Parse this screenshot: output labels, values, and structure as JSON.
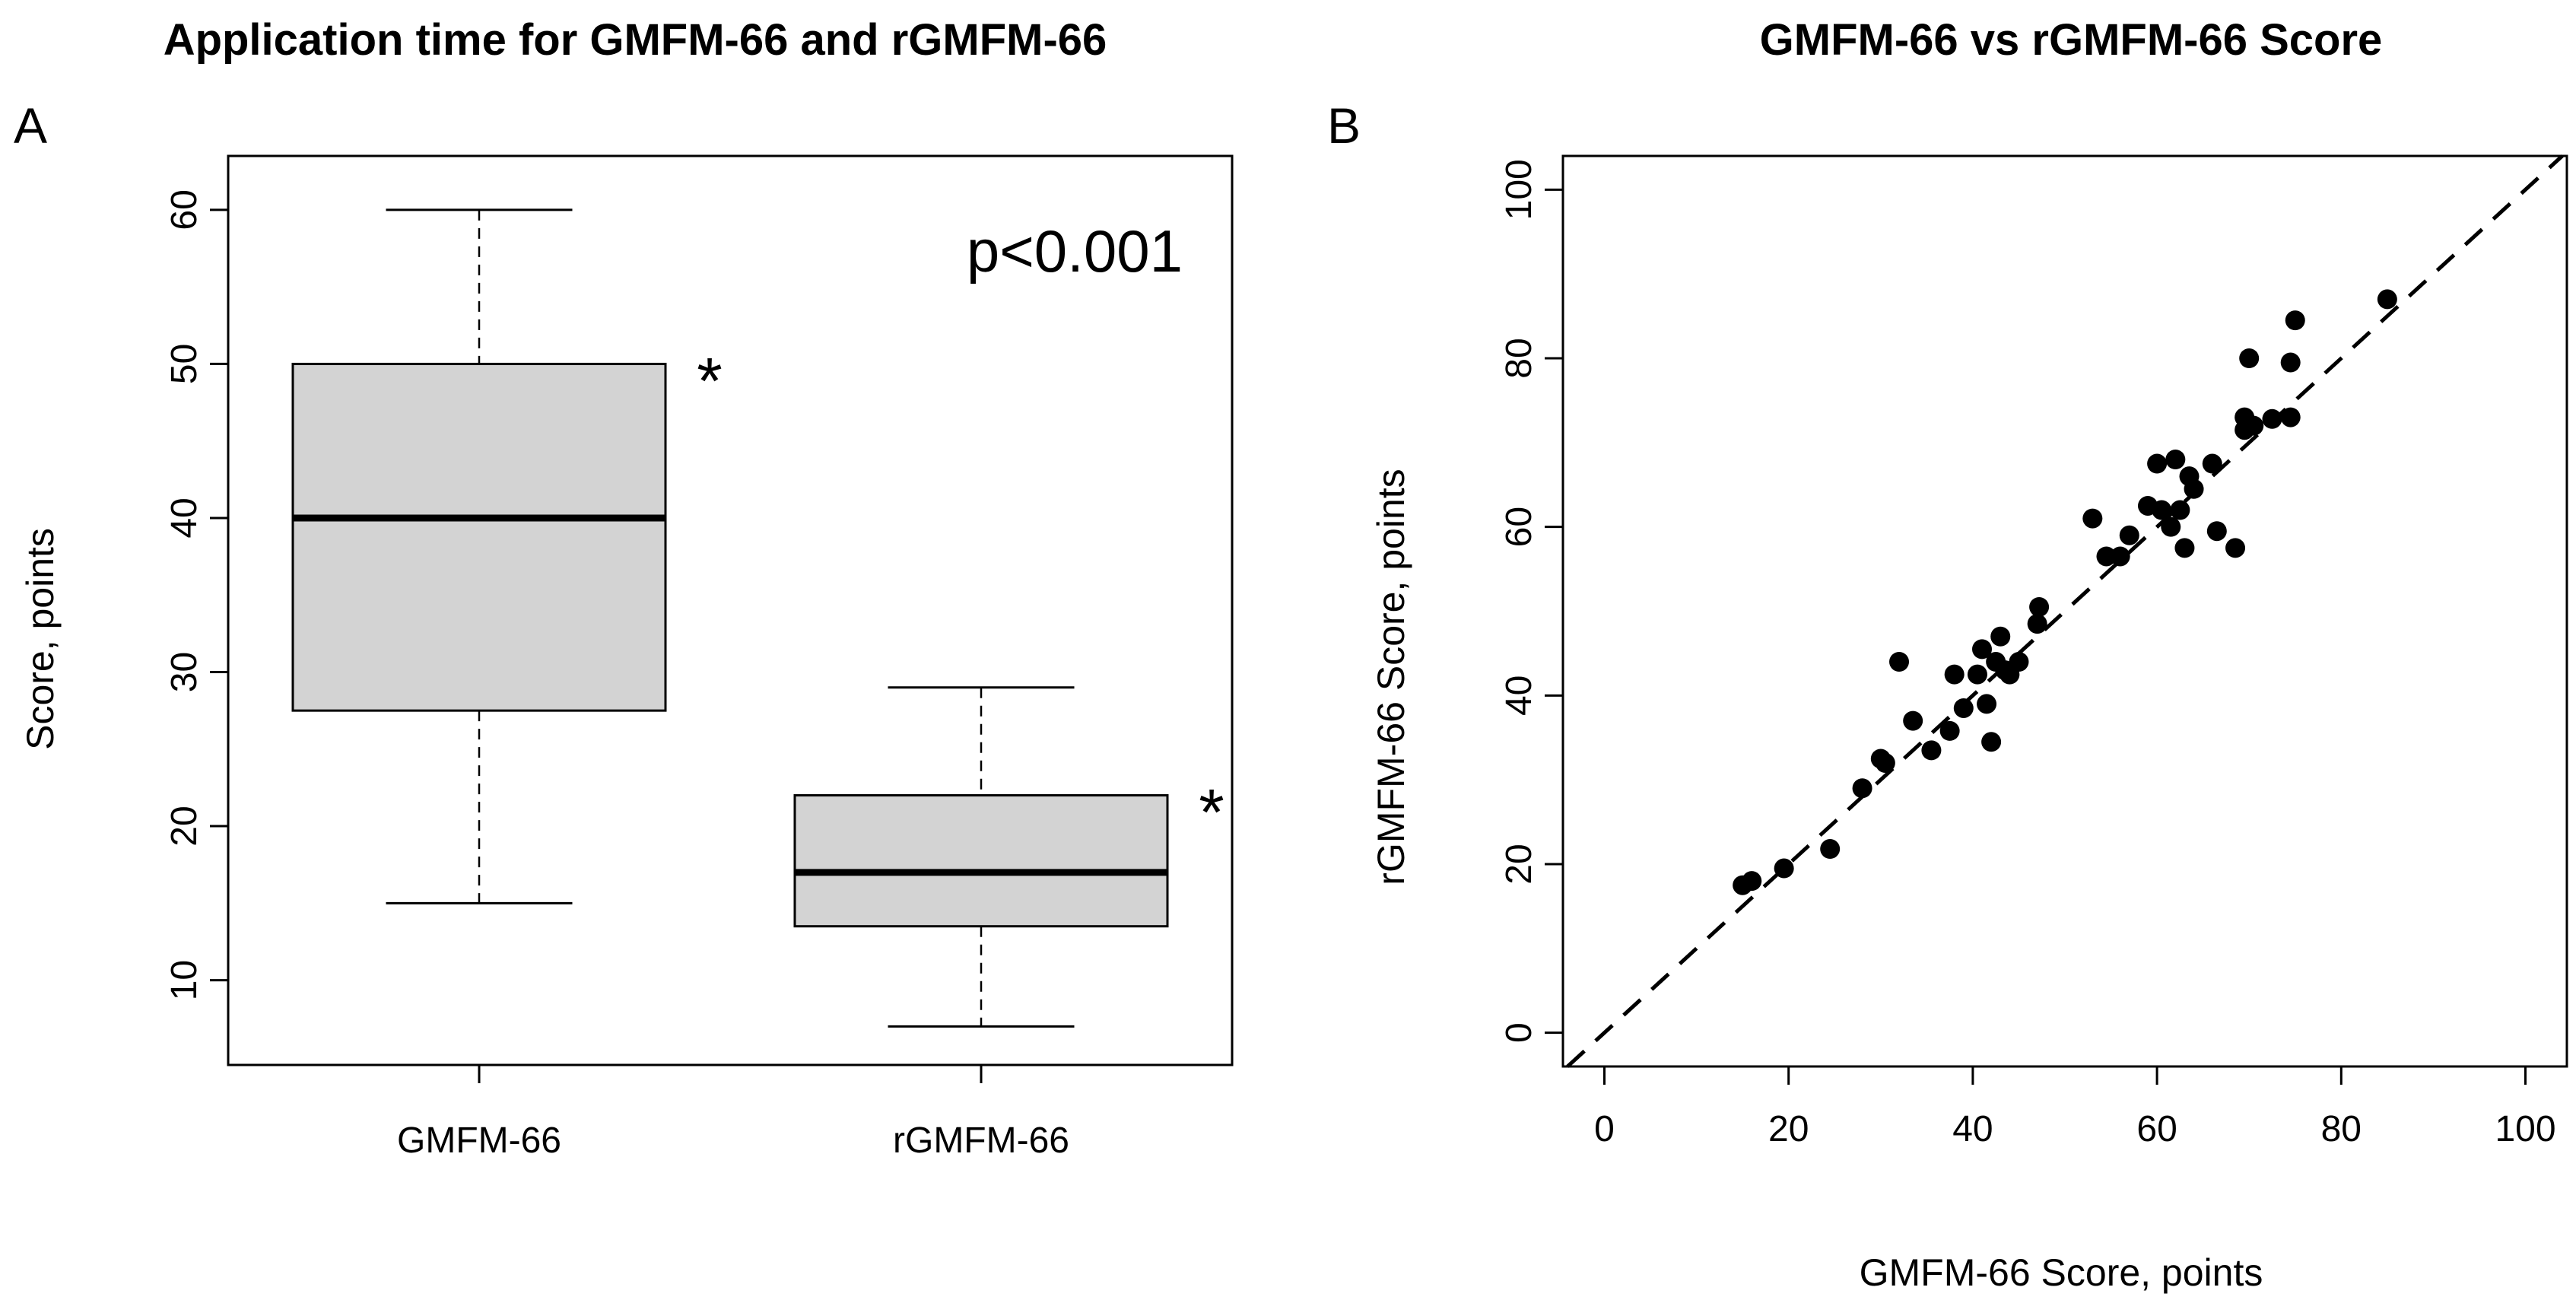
{
  "chart_data": [
    {
      "type": "box",
      "panel_label": "A",
      "title": "Application time for GMFM-66 and rGMFM-66",
      "ylabel": "Score, points",
      "xlabel": "",
      "ylim": [
        4.5,
        63.5
      ],
      "yticks": [
        10,
        20,
        30,
        40,
        50,
        60
      ],
      "annotation": "p<0.001",
      "boxes": [
        {
          "category": "GMFM-66",
          "min": 15,
          "q1": 27.5,
          "median": 40,
          "q3": 50,
          "max": 60,
          "marker": "*"
        },
        {
          "category": "rGMFM-66",
          "min": 7,
          "q1": 13.5,
          "median": 17,
          "q3": 22,
          "max": 29,
          "marker": "*"
        }
      ],
      "box_fill": "#d3d3d3"
    },
    {
      "type": "scatter",
      "panel_label": "B",
      "title": "GMFM-66 vs rGMFM-66 Score",
      "xlabel": "GMFM-66 Score, points",
      "ylabel": "rGMFM-66 Score, points",
      "xlim": [
        -4.5,
        104.5
      ],
      "ylim": [
        -4,
        104
      ],
      "xticks": [
        0,
        20,
        40,
        60,
        80,
        100
      ],
      "yticks": [
        0,
        20,
        40,
        60,
        80,
        100
      ],
      "reference_line": {
        "slope": 1,
        "intercept": 0,
        "style": "dashed"
      },
      "points": [
        [
          15,
          17.5
        ],
        [
          16,
          18
        ],
        [
          19.5,
          19.5
        ],
        [
          24.5,
          21.8
        ],
        [
          28,
          29
        ],
        [
          30,
          32.5
        ],
        [
          30.5,
          32
        ],
        [
          32,
          44
        ],
        [
          33.5,
          37
        ],
        [
          35.5,
          33.5
        ],
        [
          37.5,
          35.8
        ],
        [
          38,
          42.5
        ],
        [
          39,
          38.5
        ],
        [
          40.5,
          42.5
        ],
        [
          41,
          45.5
        ],
        [
          41.5,
          39
        ],
        [
          42,
          34.5
        ],
        [
          42.5,
          44
        ],
        [
          43,
          47
        ],
        [
          43.5,
          43
        ],
        [
          44,
          42.5
        ],
        [
          45,
          44
        ],
        [
          47,
          48.5
        ],
        [
          47.2,
          50.5
        ],
        [
          53,
          61
        ],
        [
          54.5,
          56.5
        ],
        [
          56,
          56.5
        ],
        [
          57,
          59
        ],
        [
          59,
          62.5
        ],
        [
          60,
          67.5
        ],
        [
          60.5,
          62
        ],
        [
          61.5,
          60
        ],
        [
          62,
          68
        ],
        [
          62.5,
          62
        ],
        [
          63,
          57.5
        ],
        [
          63.5,
          66
        ],
        [
          64,
          64.5
        ],
        [
          66,
          67.5
        ],
        [
          66.5,
          59.5
        ],
        [
          68.5,
          57.5
        ],
        [
          69.5,
          71.5
        ],
        [
          69.5,
          73
        ],
        [
          70,
          80
        ],
        [
          70.5,
          72
        ],
        [
          72.5,
          72.8
        ],
        [
          74.5,
          73
        ],
        [
          74.5,
          79.5
        ],
        [
          75,
          84.5
        ],
        [
          85,
          87
        ]
      ]
    }
  ]
}
